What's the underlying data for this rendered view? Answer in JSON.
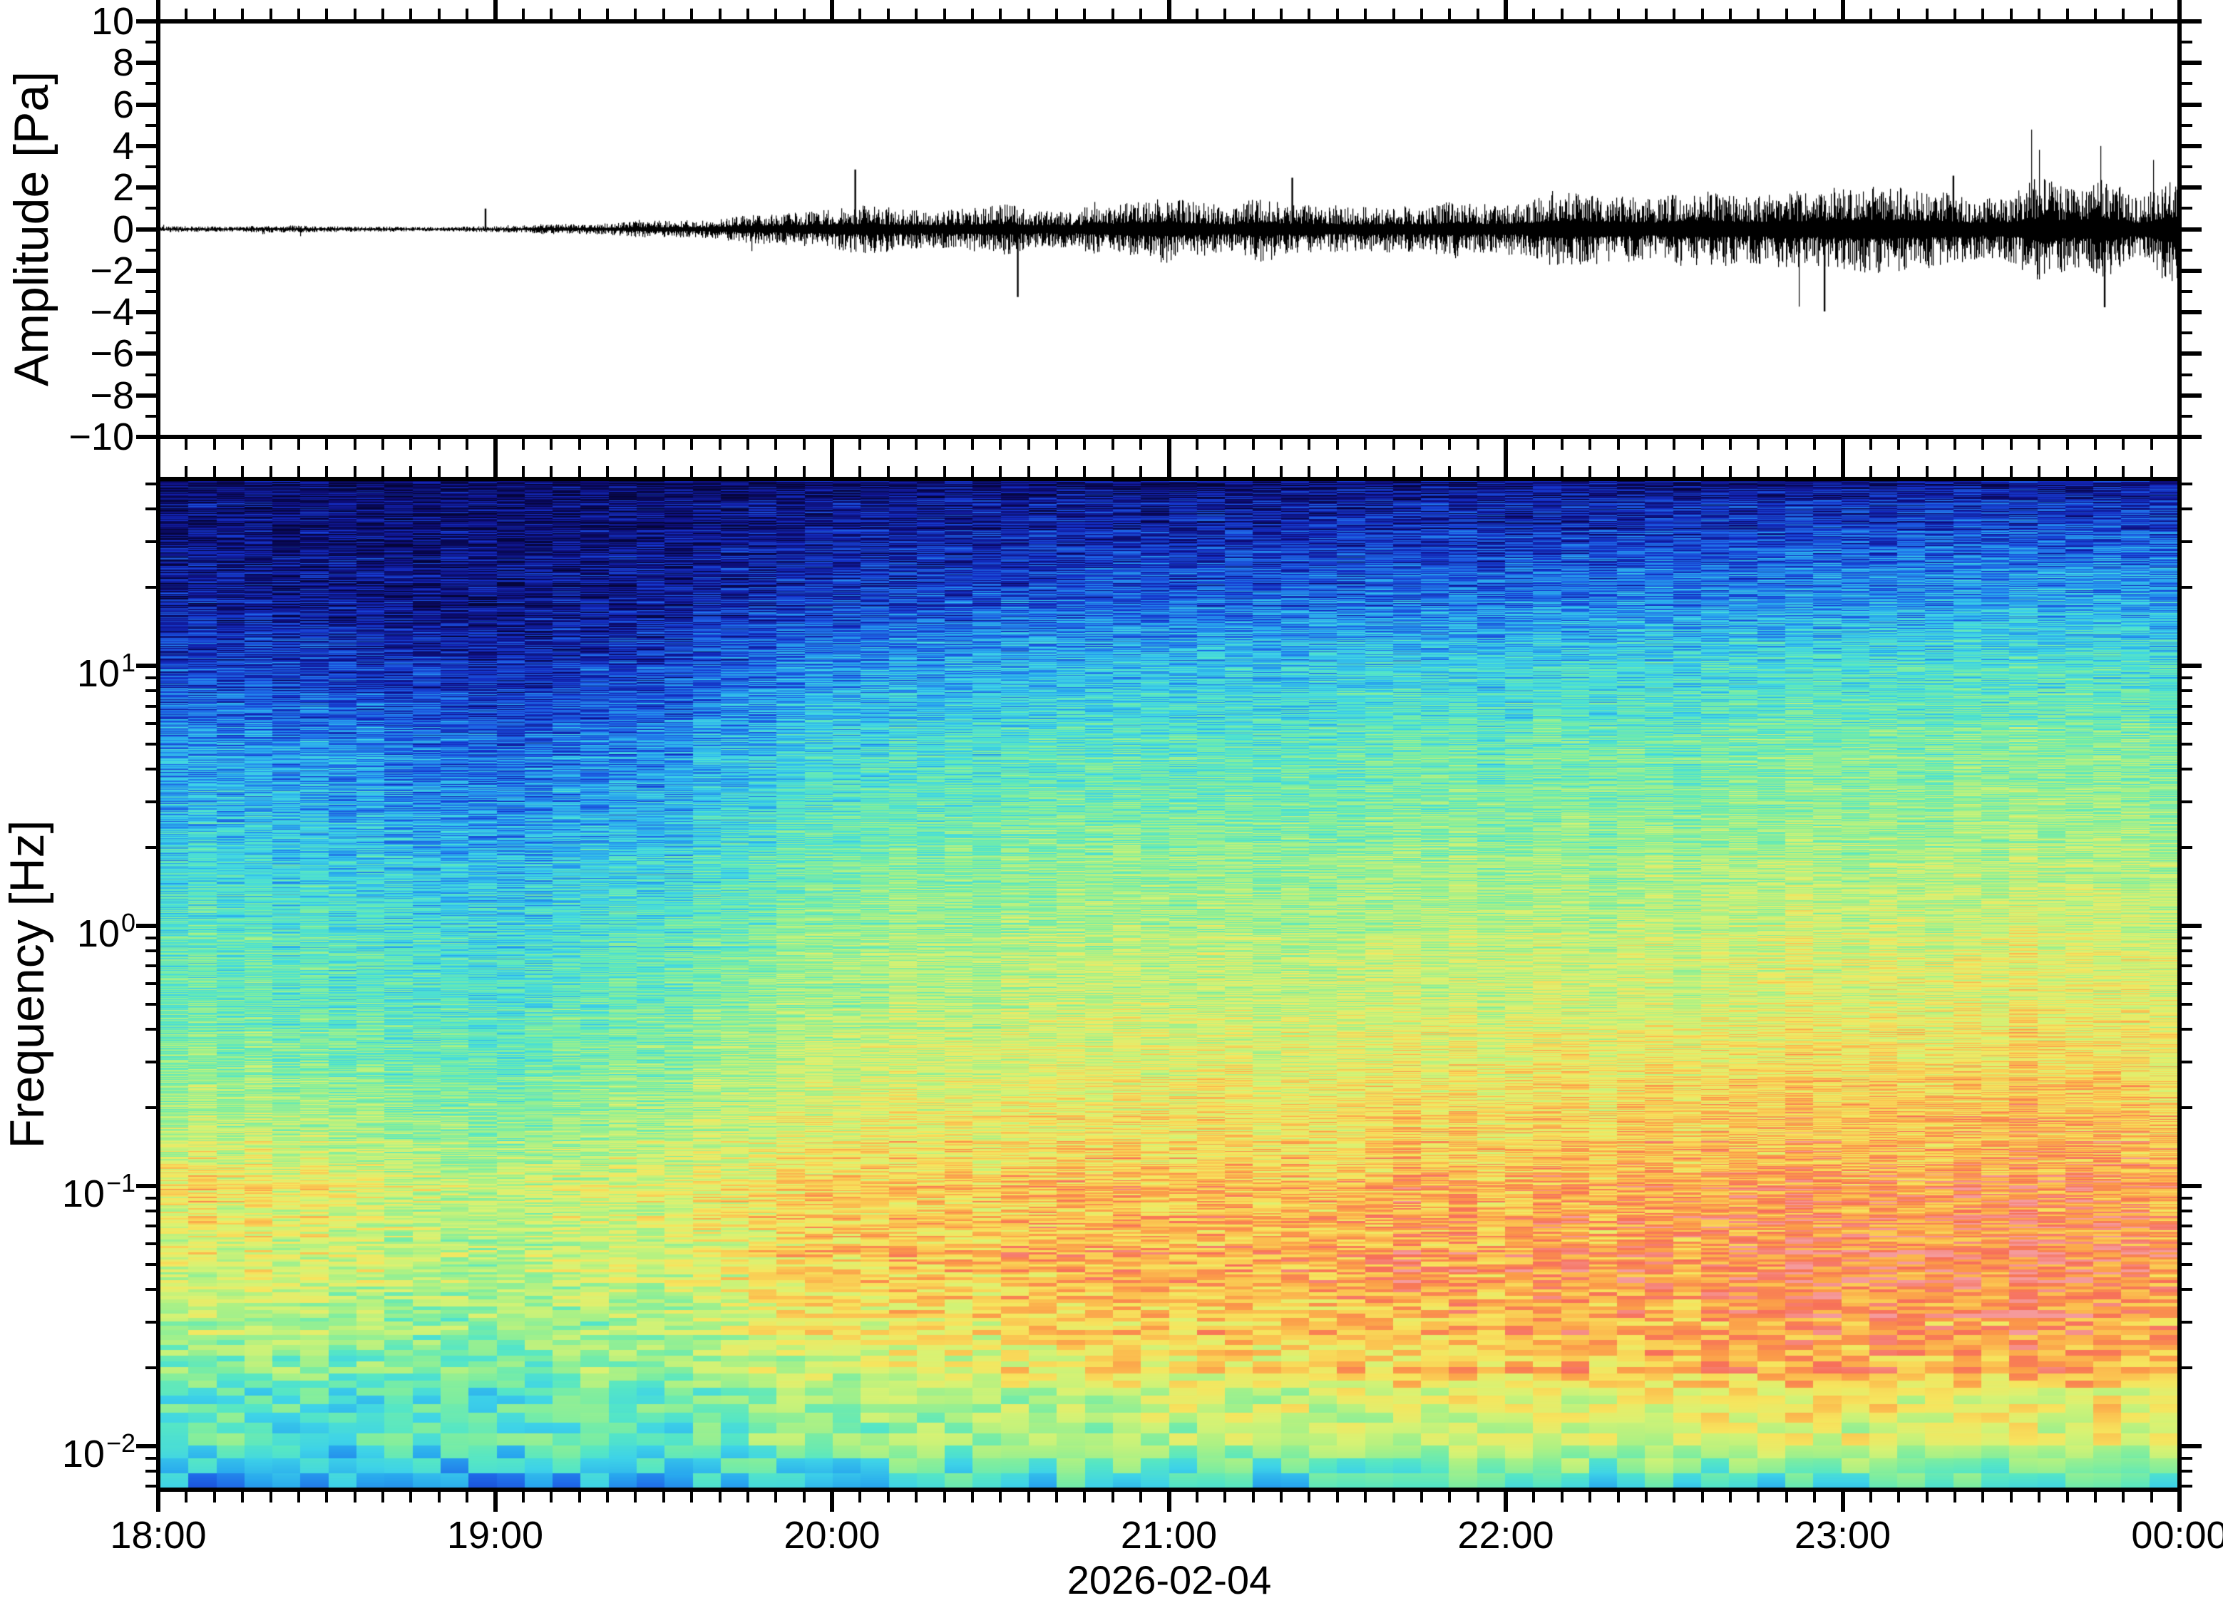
{
  "figure": {
    "background": "#ffffff",
    "frame_color": "#000000",
    "description": "Two-panel acoustic record: pressure waveform (top) and log-frequency spectrogram (bottom) from 18:00 to 00:00 on 2026-02-04."
  },
  "waveform_panel": {
    "ylabel": "Amplitude [Pa]",
    "ylim": [
      -10,
      10
    ],
    "ytick_labels": [
      "10",
      "8",
      "6",
      "4",
      "2",
      "0",
      "−2",
      "−4",
      "−6",
      "−8",
      "−10"
    ],
    "ytick_values": [
      10,
      8,
      6,
      4,
      2,
      0,
      -2,
      -4,
      -6,
      -8,
      -10
    ],
    "trace_color": "#000000"
  },
  "spectrogram_panel": {
    "ylabel": "Frequency [Hz]",
    "yscale": "log",
    "ytick_labels": [
      {
        "base": "10",
        "exp": "1",
        "value": 10
      },
      {
        "base": "10",
        "exp": "0",
        "value": 1
      },
      {
        "base": "10",
        "exp": "−1",
        "value": 0.1
      },
      {
        "base": "10",
        "exp": "−2",
        "value": 0.01
      }
    ],
    "freq_range_hz": [
      0.0068,
      52
    ]
  },
  "time_axis": {
    "tick_labels": [
      "18:00",
      "19:00",
      "20:00",
      "21:00",
      "22:00",
      "23:00",
      "00:00"
    ],
    "minor_tick_minutes": 5,
    "date_label": "2026-02-04"
  },
  "chart_data": [
    {
      "type": "line",
      "name": "pressure-waveform",
      "ylabel": "Amplitude [Pa]",
      "ylim": [
        -10,
        10
      ],
      "x_time": [
        "18:00",
        "18:15",
        "18:30",
        "18:45",
        "19:00",
        "19:15",
        "19:30",
        "19:45",
        "20:00",
        "20:15",
        "20:30",
        "20:45",
        "21:00",
        "21:15",
        "21:30",
        "21:45",
        "22:00",
        "22:15",
        "22:30",
        "22:45",
        "23:00",
        "23:15",
        "23:30",
        "23:45",
        "00:00"
      ],
      "envelope_pa": [
        0.11,
        0.13,
        0.16,
        0.13,
        0.13,
        0.25,
        0.42,
        0.62,
        0.82,
        0.95,
        1.05,
        1.12,
        1.22,
        1.32,
        1.35,
        1.4,
        1.45,
        1.5,
        1.55,
        1.62,
        1.7,
        1.8,
        1.88,
        1.95,
        2.0
      ],
      "notable_spikes": [
        {
          "time": "18:58",
          "amplitude_pa": 1.0
        },
        {
          "time": "20:04",
          "amplitude_pa": 2.9
        },
        {
          "time": "20:33",
          "amplitude_pa": -3.3
        },
        {
          "time": "21:22",
          "amplitude_pa": 2.5
        },
        {
          "time": "22:57",
          "amplitude_pa": -4.0
        },
        {
          "time": "23:20",
          "amplitude_pa": 2.6
        },
        {
          "time": "23:47",
          "amplitude_pa": -3.8
        }
      ],
      "note": "Broadband noise, nearly flat (~0.1 Pa) until ~19:05, grows steadily after ~19:30 to ~2 Pa peak-envelope by 00:00; values estimated from pixels."
    },
    {
      "type": "heatmap",
      "name": "spectrogram",
      "xlabel": "2026-02-04",
      "ylabel": "Frequency [Hz]",
      "yscale": "log",
      "time_bin_minutes": 5,
      "x_time": [
        "18:00",
        "18:30",
        "19:00",
        "19:30",
        "20:00",
        "20:30",
        "21:00",
        "21:30",
        "22:00",
        "22:30",
        "23:00",
        "23:30",
        "00:00"
      ],
      "y_freq_hz": [
        50,
        20,
        10,
        5,
        2,
        1,
        0.5,
        0.2,
        0.1,
        0.05,
        0.02,
        0.01,
        0.0068
      ],
      "value_scale": "normalized 0-1 relative spectral power (no colorbar shown in figure)",
      "values_norm": [
        [
          0.05,
          0.05,
          0.04,
          0.05,
          0.06,
          0.07,
          0.07,
          0.08,
          0.08,
          0.09,
          0.1,
          0.11,
          0.11
        ],
        [
          0.1,
          0.09,
          0.07,
          0.1,
          0.16,
          0.18,
          0.2,
          0.22,
          0.24,
          0.26,
          0.28,
          0.3,
          0.3
        ],
        [
          0.18,
          0.16,
          0.12,
          0.17,
          0.28,
          0.32,
          0.35,
          0.37,
          0.38,
          0.4,
          0.42,
          0.43,
          0.43
        ],
        [
          0.3,
          0.28,
          0.22,
          0.28,
          0.4,
          0.44,
          0.46,
          0.48,
          0.49,
          0.5,
          0.52,
          0.53,
          0.53
        ],
        [
          0.4,
          0.38,
          0.32,
          0.38,
          0.5,
          0.53,
          0.55,
          0.56,
          0.57,
          0.58,
          0.6,
          0.61,
          0.61
        ],
        [
          0.46,
          0.44,
          0.38,
          0.44,
          0.55,
          0.58,
          0.6,
          0.61,
          0.62,
          0.63,
          0.65,
          0.66,
          0.66
        ],
        [
          0.5,
          0.48,
          0.43,
          0.49,
          0.6,
          0.63,
          0.65,
          0.66,
          0.67,
          0.68,
          0.7,
          0.71,
          0.71
        ],
        [
          0.6,
          0.58,
          0.5,
          0.58,
          0.68,
          0.71,
          0.73,
          0.75,
          0.76,
          0.78,
          0.8,
          0.81,
          0.81
        ],
        [
          0.76,
          0.72,
          0.62,
          0.68,
          0.78,
          0.8,
          0.82,
          0.83,
          0.84,
          0.86,
          0.88,
          0.89,
          0.89
        ],
        [
          0.68,
          0.66,
          0.58,
          0.66,
          0.78,
          0.81,
          0.84,
          0.86,
          0.87,
          0.89,
          0.91,
          0.92,
          0.92
        ],
        [
          0.55,
          0.53,
          0.49,
          0.56,
          0.66,
          0.7,
          0.74,
          0.77,
          0.8,
          0.82,
          0.84,
          0.85,
          0.85
        ],
        [
          0.44,
          0.42,
          0.4,
          0.45,
          0.52,
          0.55,
          0.58,
          0.6,
          0.62,
          0.63,
          0.64,
          0.64,
          0.64
        ],
        [
          0.33,
          0.32,
          0.3,
          0.34,
          0.4,
          0.42,
          0.43,
          0.44,
          0.45,
          0.45,
          0.46,
          0.46,
          0.46
        ]
      ],
      "colormap_stops": [
        [
          0.0,
          "#05053a"
        ],
        [
          0.08,
          "#0e0e7d"
        ],
        [
          0.16,
          "#1430c8"
        ],
        [
          0.24,
          "#1f6ae8"
        ],
        [
          0.31,
          "#28a7ee"
        ],
        [
          0.38,
          "#3ed3e8"
        ],
        [
          0.45,
          "#55e6c6"
        ],
        [
          0.52,
          "#7deda1"
        ],
        [
          0.6,
          "#aef184"
        ],
        [
          0.68,
          "#d9f273"
        ],
        [
          0.75,
          "#f6e55e"
        ],
        [
          0.82,
          "#fbc250"
        ],
        [
          0.88,
          "#fb9a49"
        ],
        [
          0.94,
          "#f7705a"
        ],
        [
          1.0,
          "#f59a9b"
        ]
      ]
    }
  ]
}
